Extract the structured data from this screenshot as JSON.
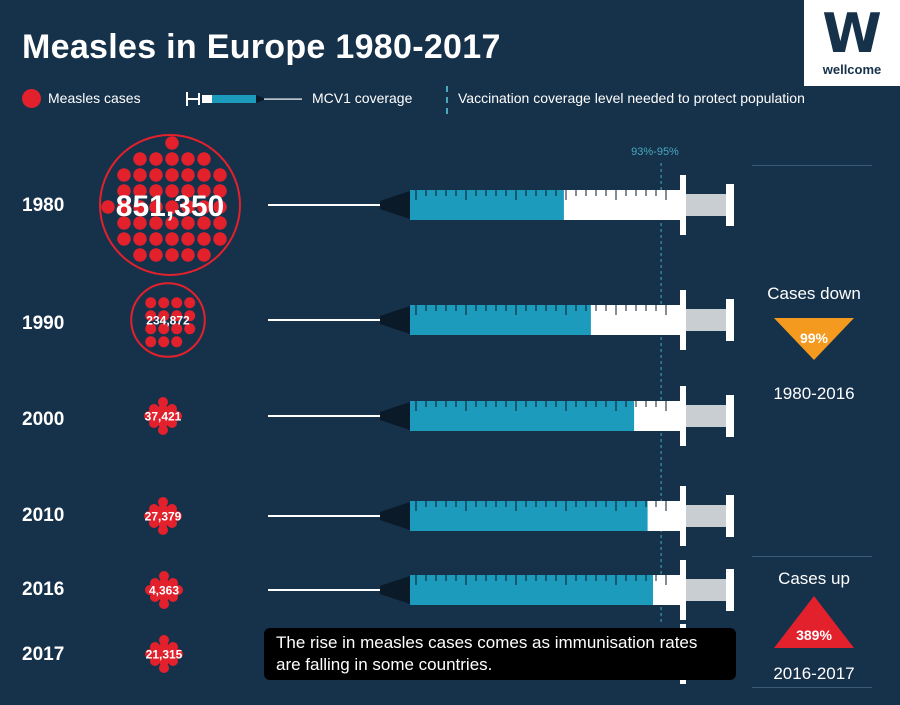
{
  "header": {
    "title": "Measles in Europe 1980-2017"
  },
  "brand": {
    "logo_letter": "W",
    "logo_name": "wellcome"
  },
  "legend": {
    "cases": "Measles cases",
    "coverage": "MCV1 coverage",
    "threshold": "Vaccination coverage level needed to protect population"
  },
  "chart_data": {
    "type": "infographic",
    "title": "Measles in Europe 1980-2017",
    "series": [
      {
        "name": "Measles cases",
        "values": [
          851350,
          234872,
          37421,
          27379,
          4363,
          21315
        ]
      },
      {
        "name": "MCV1 coverage (%)",
        "values": [
          57,
          67,
          83,
          88,
          90,
          null
        ]
      }
    ],
    "categories": [
      "1980",
      "1990",
      "2000",
      "2010",
      "2016",
      "2017"
    ],
    "case_labels": [
      "851,350",
      "234,872",
      "37,421",
      "27,379",
      "4,363",
      "21,315"
    ],
    "threshold_label": "93%-95%",
    "threshold_value": 93
  },
  "summary": {
    "down_title": "Cases down",
    "down_value": "99%",
    "down_period": "1980-2016",
    "up_title": "Cases up",
    "up_value": "389%",
    "up_period": "2016-2017"
  },
  "note": "The rise in measles cases comes as immunisation rates are falling in some countries.",
  "colors": {
    "bg": "#16314a",
    "red": "#e3212c",
    "teal": "#1d9bbd",
    "orange": "#f39a1f"
  }
}
